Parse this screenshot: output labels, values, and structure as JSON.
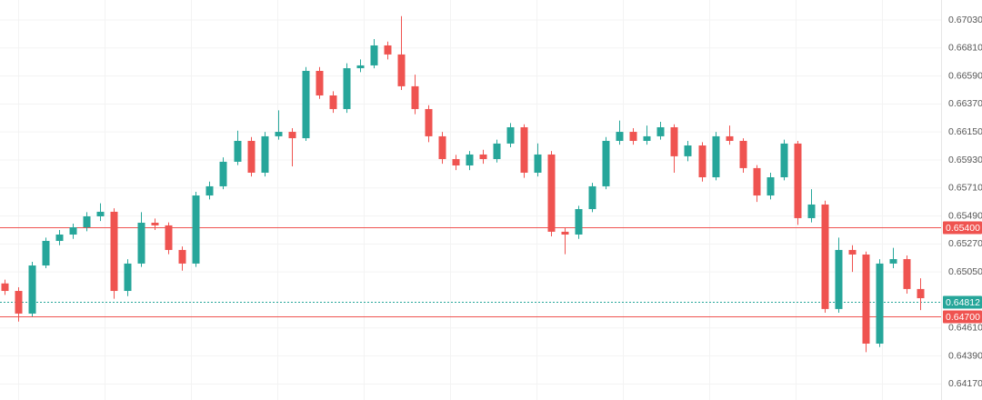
{
  "chart_data": {
    "type": "candlestick",
    "grid": true,
    "up_color": "#26a69a",
    "down_color": "#ef5350",
    "ylim": [
      0.64044,
      0.67187
    ],
    "yticks": [
      {
        "value": 0.6703,
        "label": "0.67030"
      },
      {
        "value": 0.6681,
        "label": "0.66810"
      },
      {
        "value": 0.6659,
        "label": "0.66590"
      },
      {
        "value": 0.6637,
        "label": "0.66370"
      },
      {
        "value": 0.6615,
        "label": "0.66150"
      },
      {
        "value": 0.6593,
        "label": "0.65930"
      },
      {
        "value": 0.6571,
        "label": "0.65710"
      },
      {
        "value": 0.6549,
        "label": "0.65490"
      },
      {
        "value": 0.6527,
        "label": "0.65270"
      },
      {
        "value": 0.6505,
        "label": "0.65050"
      },
      {
        "value": 0.6461,
        "label": "0.64610"
      },
      {
        "value": 0.6439,
        "label": "0.64390"
      },
      {
        "value": 0.6417,
        "label": "0.64170"
      }
    ],
    "levels": [
      {
        "value": 0.654,
        "label": "0.65400",
        "color": "#ef5350",
        "style": "solid"
      },
      {
        "value": 0.64812,
        "label": "0.64812",
        "color": "#26a69a",
        "style": "dotted"
      },
      {
        "value": 0.647,
        "label": "0.64700",
        "color": "#ef5350",
        "style": "solid"
      }
    ],
    "open": [
      0.6496,
      0.64901,
      0.64723,
      0.65101,
      0.65294,
      0.65344,
      0.65401,
      0.65487,
      0.65523,
      0.64901,
      0.65116,
      0.65437,
      0.65416,
      0.65223,
      0.65116,
      0.65651,
      0.65723,
      0.65916,
      0.6608,
      0.6583,
      0.66116,
      0.66151,
      0.66101,
      0.6663,
      0.66437,
      0.6633,
      0.66651,
      0.66673,
      0.6683,
      0.66759,
      0.66509,
      0.6633,
      0.66116,
      0.65937,
      0.65887,
      0.65973,
      0.65937,
      0.66059,
      0.66187,
      0.6583,
      0.65973,
      0.65366,
      0.65344,
      0.65544,
      0.65723,
      0.6608,
      0.66151,
      0.6608,
      0.66116,
      0.66187,
      0.65959,
      0.66044,
      0.65794,
      0.66116,
      0.6608,
      0.65866,
      0.65651,
      0.65794,
      0.66059,
      0.65473,
      0.6558,
      0.64759,
      0.65223,
      0.65187,
      0.64487,
      0.65116,
      0.65151,
      0.64916
    ],
    "high": [
      0.6499,
      0.6493,
      0.6513,
      0.6532,
      0.6538,
      0.6543,
      0.6552,
      0.6559,
      0.6555,
      0.6515,
      0.6552,
      0.6547,
      0.6544,
      0.6525,
      0.6568,
      0.6576,
      0.6595,
      0.6616,
      0.6611,
      0.6615,
      0.6632,
      0.6618,
      0.6666,
      0.6666,
      0.6647,
      0.6669,
      0.6672,
      0.6688,
      0.6686,
      0.6706,
      0.666,
      0.6636,
      0.6615,
      0.6597,
      0.66,
      0.6601,
      0.6609,
      0.6622,
      0.6621,
      0.6606,
      0.66,
      0.654,
      0.6557,
      0.6575,
      0.6611,
      0.6624,
      0.6618,
      0.662,
      0.6623,
      0.6621,
      0.6608,
      0.6607,
      0.6615,
      0.662,
      0.661,
      0.6589,
      0.6583,
      0.6609,
      0.6608,
      0.657,
      0.6561,
      0.6532,
      0.6526,
      0.6521,
      0.6515,
      0.6524,
      0.6518,
      0.65
    ],
    "low": [
      0.6487,
      0.6466,
      0.647,
      0.6508,
      0.6526,
      0.6531,
      0.6537,
      0.6545,
      0.6484,
      0.6486,
      0.6509,
      0.6538,
      0.6519,
      0.6506,
      0.6509,
      0.6562,
      0.657,
      0.6589,
      0.658,
      0.658,
      0.6609,
      0.6588,
      0.6608,
      0.6641,
      0.663,
      0.663,
      0.6662,
      0.6665,
      0.6672,
      0.6648,
      0.6629,
      0.6607,
      0.659,
      0.6585,
      0.6585,
      0.659,
      0.6591,
      0.6603,
      0.6579,
      0.658,
      0.6533,
      0.6519,
      0.6531,
      0.6552,
      0.657,
      0.6605,
      0.6605,
      0.6605,
      0.6609,
      0.6583,
      0.6592,
      0.6576,
      0.6577,
      0.6605,
      0.6583,
      0.656,
      0.6562,
      0.6577,
      0.6542,
      0.6544,
      0.6473,
      0.6473,
      0.6505,
      0.6442,
      0.6446,
      0.6508,
      0.6488,
      0.6475
    ],
    "close": [
      0.64901,
      0.64723,
      0.65101,
      0.65294,
      0.65344,
      0.65401,
      0.65487,
      0.65523,
      0.64901,
      0.65116,
      0.65437,
      0.65416,
      0.65223,
      0.65116,
      0.65651,
      0.65723,
      0.65916,
      0.6608,
      0.6583,
      0.66116,
      0.66151,
      0.66101,
      0.6663,
      0.66437,
      0.6633,
      0.66651,
      0.66673,
      0.6683,
      0.66759,
      0.66509,
      0.6633,
      0.66116,
      0.65937,
      0.65887,
      0.65973,
      0.65937,
      0.66059,
      0.66187,
      0.6583,
      0.65973,
      0.65366,
      0.65344,
      0.65544,
      0.65723,
      0.6608,
      0.66151,
      0.6608,
      0.66116,
      0.66187,
      0.65959,
      0.66044,
      0.65794,
      0.66116,
      0.6608,
      0.65866,
      0.65651,
      0.65794,
      0.66059,
      0.65473,
      0.6558,
      0.64759,
      0.65223,
      0.65187,
      0.64487,
      0.65116,
      0.65151,
      0.64916,
      0.64844
    ]
  }
}
